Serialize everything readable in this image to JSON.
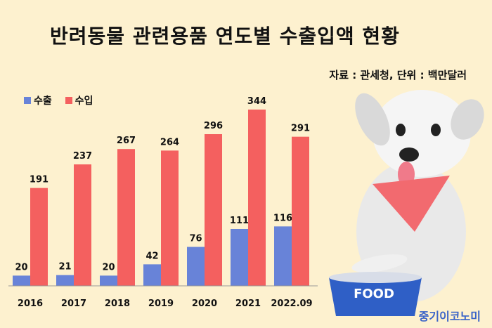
{
  "title": "반려동물 관련용품 연도별 수출입액 현황",
  "source_note": "자료 : 관세청, 단위 : 백만달러",
  "watermark": "중기이코노미",
  "food_bowl_label": "FOOD",
  "colors": {
    "export": "#6883d8",
    "import": "#f4605f",
    "background": "#fdf1cf"
  },
  "chart_data": {
    "type": "bar",
    "categories": [
      "2016",
      "2017",
      "2018",
      "2019",
      "2020",
      "2021",
      "2022.09"
    ],
    "series": [
      {
        "name": "수출",
        "values": [
          20,
          21,
          20,
          42,
          76,
          111,
          116
        ]
      },
      {
        "name": "수입",
        "values": [
          191,
          237,
          267,
          264,
          296,
          344,
          291
        ]
      }
    ],
    "ylim": [
      0,
      344
    ],
    "legend_position": "top-left",
    "grid": false
  }
}
